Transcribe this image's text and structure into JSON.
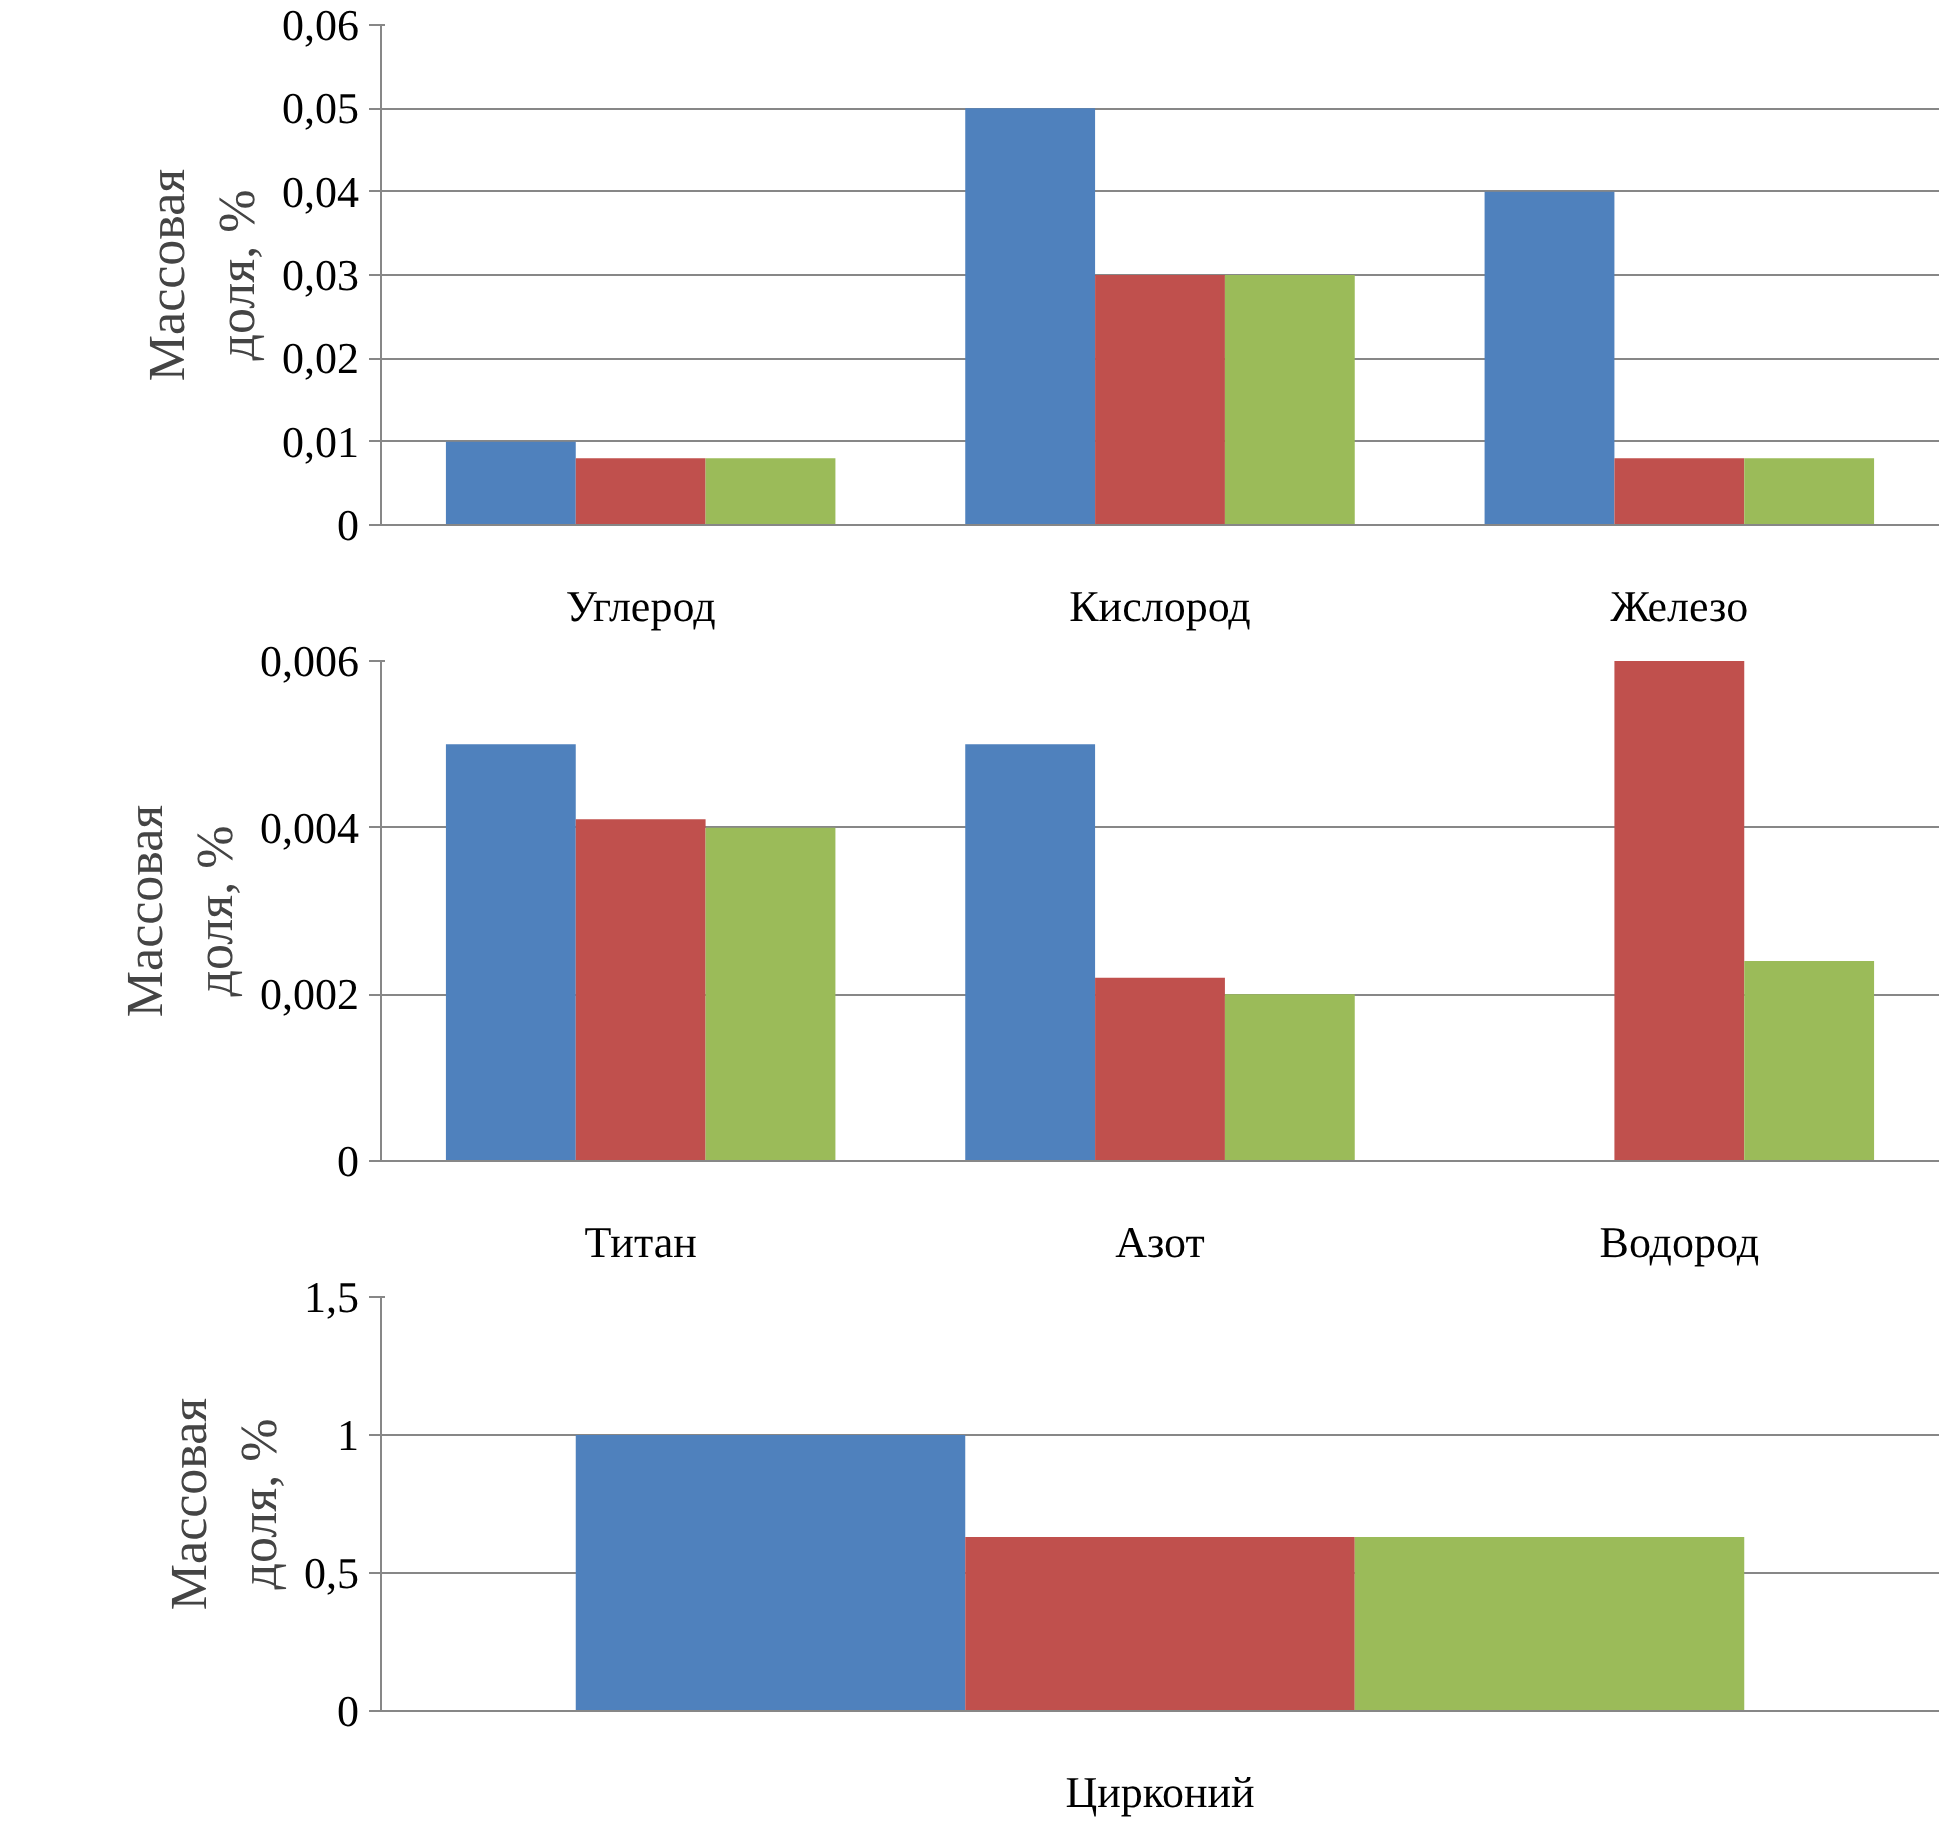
{
  "chart_data": [
    {
      "type": "bar",
      "ylabel": "Массовая доля, %",
      "categories": [
        "Углерод",
        "Кислород",
        "Железо"
      ],
      "series": [
        {
          "color": "#4f81bd",
          "values": [
            0.01,
            0.05,
            0.04
          ]
        },
        {
          "color": "#c0504d",
          "values": [
            0.008,
            0.03,
            0.008
          ]
        },
        {
          "color": "#9bbb59",
          "values": [
            0.008,
            0.03,
            0.008
          ]
        }
      ],
      "ylim": [
        0,
        0.06
      ],
      "yticks": [
        0,
        {
          "value": 0.01,
          "label": "0,01"
        },
        {
          "value": 0.02,
          "label": "0,02"
        },
        {
          "value": 0.03,
          "label": "0,03"
        },
        {
          "value": 0.04,
          "label": "0,04"
        },
        {
          "value": 0.05,
          "label": "0,05"
        },
        {
          "value": 0.06,
          "label": "0,06"
        }
      ],
      "grid": "y"
    },
    {
      "type": "bar",
      "ylabel": "Массовая доля, %",
      "categories": [
        "Титан",
        "Азот",
        "Водород"
      ],
      "series": [
        {
          "color": "#4f81bd",
          "values": [
            0.005,
            0.005,
            null
          ]
        },
        {
          "color": "#c0504d",
          "values": [
            0.0041,
            0.0022,
            0.006
          ]
        },
        {
          "color": "#9bbb59",
          "values": [
            0.004,
            0.002,
            0.0024
          ]
        }
      ],
      "ylim": [
        0,
        0.006
      ],
      "yticks": [
        0,
        {
          "value": 0.002,
          "label": "0,002"
        },
        {
          "value": 0.004,
          "label": "0,004"
        },
        {
          "value": 0.006,
          "label": "0,006"
        }
      ],
      "grid": "y"
    },
    {
      "type": "bar",
      "ylabel": "Массовая доля, %",
      "categories": [
        "Цирконий"
      ],
      "series": [
        {
          "color": "#4f81bd",
          "values": [
            1
          ]
        },
        {
          "color": "#c0504d",
          "values": [
            0.63
          ]
        },
        {
          "color": "#9bbb59",
          "values": [
            0.63
          ]
        }
      ],
      "ylim": [
        0,
        1.5
      ],
      "yticks": [
        0,
        {
          "value": 0.5,
          "label": "0,5"
        },
        1,
        {
          "value": 1.5,
          "label": "1,5"
        }
      ],
      "grid": "y"
    }
  ]
}
